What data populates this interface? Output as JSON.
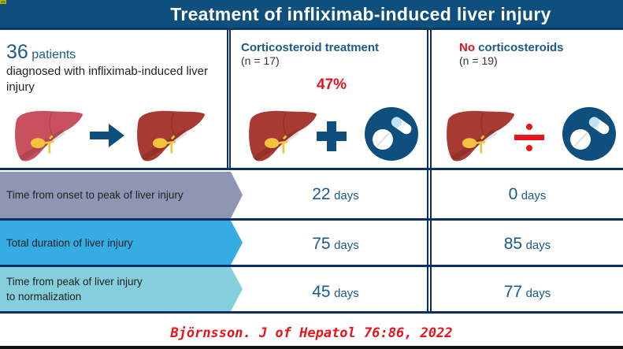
{
  "title": "Treatment of infliximab-induced liver injury",
  "intro": {
    "count": "36",
    "count_unit": "patients",
    "description": "diagnosed with infliximab-induced liver injury"
  },
  "groups": [
    {
      "label": "Corticosteroid treatment",
      "n": "(n = 17)",
      "percent": "47%"
    },
    {
      "label_prefix": "No",
      "label_rest": " corticosteroids",
      "n": "(n = 19)"
    }
  ],
  "rows": [
    {
      "label": "Time from onset to peak of liver injury",
      "values": [
        "22",
        "0"
      ],
      "unit": "days",
      "color": "#8e96b4"
    },
    {
      "label": "Total duration of liver injury",
      "values": [
        "75",
        "85"
      ],
      "unit": "days",
      "color": "#35ade2"
    },
    {
      "label_line1": "Time from peak of liver injury",
      "label_line2": "to normalization",
      "values": [
        "45",
        "77"
      ],
      "unit": "days",
      "color": "#84cfdb"
    }
  ],
  "citation": "Björnsson. J of Hepatol 76:86, 2022",
  "colors": {
    "header": "#0f4f7d",
    "accent_red": "#e8141c",
    "liver_healthy": "#c9515f",
    "liver_injured": "#a83a32"
  }
}
